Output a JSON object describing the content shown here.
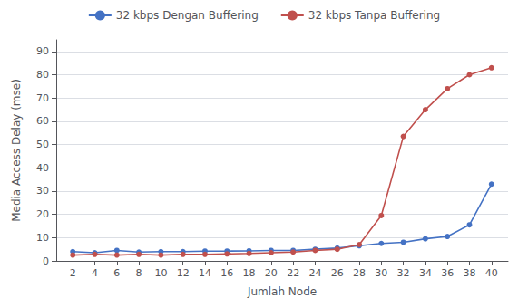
{
  "chart_data": {
    "type": "line",
    "xlabel": "Jumlah Node",
    "ylabel": "Media Access Delay (mse)",
    "x": [
      2,
      4,
      6,
      8,
      10,
      12,
      14,
      16,
      18,
      20,
      22,
      24,
      26,
      28,
      30,
      32,
      34,
      36,
      38,
      40
    ],
    "series": [
      {
        "name": "32 kbps Dengan Buffering",
        "color": "#4472C4",
        "marker": "circle",
        "values": [
          4.0,
          3.5,
          4.5,
          3.8,
          4.0,
          4.0,
          4.2,
          4.2,
          4.3,
          4.5,
          4.5,
          5.0,
          5.5,
          6.5,
          7.5,
          8.0,
          9.5,
          10.5,
          15.5,
          33.0
        ]
      },
      {
        "name": "32 kbps Tanpa Buffering",
        "color": "#C0504D",
        "marker": "circle",
        "values": [
          2.5,
          2.8,
          2.5,
          2.8,
          2.5,
          2.8,
          2.8,
          3.0,
          3.2,
          3.5,
          3.8,
          4.5,
          5.0,
          7.0,
          19.5,
          53.5,
          65.0,
          74.0,
          80.0,
          83.0
        ]
      }
    ],
    "xlim": [
      0.5,
      41.5
    ],
    "xticks": [
      2,
      4,
      6,
      8,
      10,
      12,
      14,
      16,
      18,
      20,
      22,
      24,
      26,
      28,
      30,
      32,
      34,
      36,
      38,
      40
    ],
    "ylim": [
      0,
      95
    ],
    "yticks": [
      0,
      10,
      20,
      30,
      40,
      50,
      60,
      70,
      80,
      90
    ],
    "grid": "y",
    "legend": "top"
  }
}
